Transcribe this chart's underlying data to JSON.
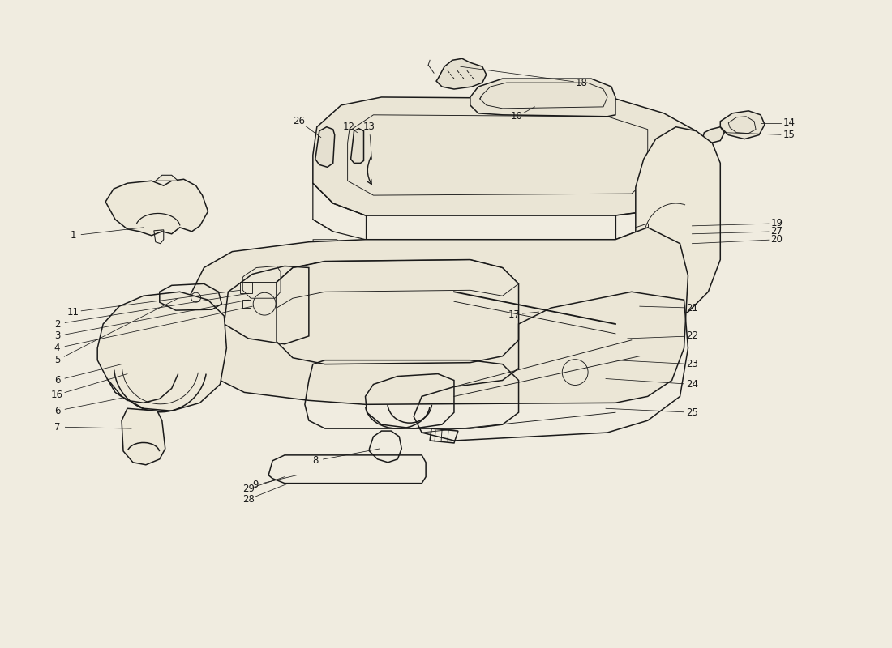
{
  "bg_color": "#f0ece0",
  "line_color": "#1a1a1a",
  "label_color": "#1a1a1a",
  "lw_main": 1.1,
  "lw_inner": 0.65,
  "lw_leader": 0.55,
  "label_fs": 8.5,
  "figsize": [
    11.0,
    8.0
  ],
  "dpi": 100
}
